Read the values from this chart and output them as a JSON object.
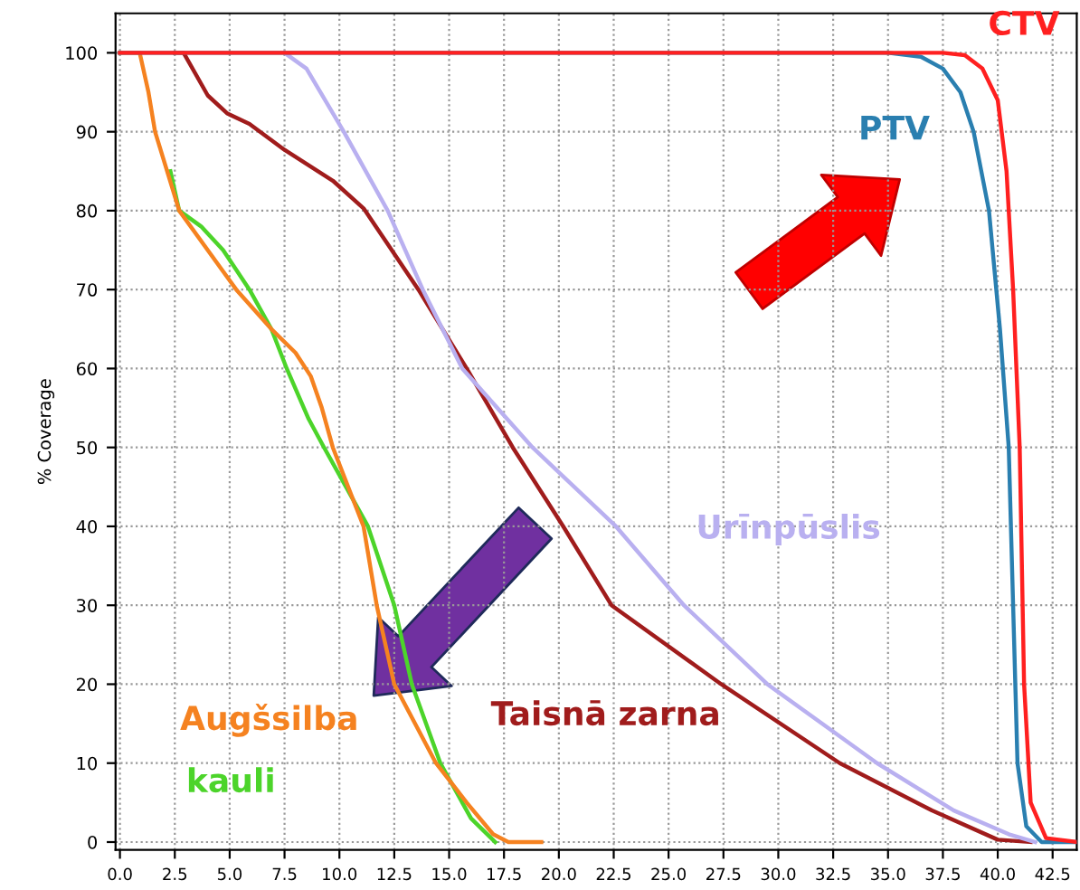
{
  "chart_data": {
    "type": "line",
    "ylabel": "% Coverage",
    "xlim": [
      -0.2,
      43.6
    ],
    "ylim": [
      -1,
      105
    ],
    "xticks": [
      {
        "value": 0,
        "label": "0.0"
      },
      {
        "value": 2.5,
        "label": "2.5"
      },
      {
        "value": 5,
        "label": "5.0"
      },
      {
        "value": 7.5,
        "label": "7.5"
      },
      {
        "value": 10,
        "label": "10.0"
      },
      {
        "value": 12.5,
        "label": "12.5"
      },
      {
        "value": 15,
        "label": "15.0"
      },
      {
        "value": 17.5,
        "label": "17.5"
      },
      {
        "value": 20,
        "label": "20.0"
      },
      {
        "value": 22.5,
        "label": "22.5"
      },
      {
        "value": 25,
        "label": "25.0"
      },
      {
        "value": 27.5,
        "label": "27.5"
      },
      {
        "value": 30,
        "label": "30.0"
      },
      {
        "value": 32.5,
        "label": "32.5"
      },
      {
        "value": 35,
        "label": "35.0"
      },
      {
        "value": 37.5,
        "label": "37.5"
      },
      {
        "value": 40,
        "label": "40.0"
      },
      {
        "value": 42.5,
        "label": "42.5"
      }
    ],
    "yticks": [
      0,
      10,
      20,
      30,
      40,
      50,
      60,
      70,
      80,
      90,
      100
    ],
    "grid": true,
    "line_style": "solid",
    "marker": "none",
    "series": [
      {
        "name": "CTV",
        "color": "#ff2020",
        "x": [
          0,
          37.5,
          38.5,
          39.3,
          40,
          40.4,
          40.7,
          41,
          41.2,
          41.5,
          42.2,
          43.6
        ],
        "values": [
          100,
          100,
          99.7,
          98,
          94,
          85,
          70,
          50,
          20,
          5,
          0.5,
          0
        ]
      },
      {
        "name": "PTV",
        "color": "#2a7fb0",
        "x": [
          0,
          35,
          36.5,
          37.5,
          38.3,
          38.9,
          39.6,
          40.1,
          40.5,
          40.7,
          40.9,
          41.3,
          42,
          43.6
        ],
        "values": [
          100,
          100,
          99.5,
          98,
          95,
          90,
          80,
          65,
          50,
          30,
          10,
          2,
          0,
          0
        ]
      },
      {
        "name": "Urīnpūslis",
        "color": "#b9b0f0",
        "x": [
          7.5,
          8.5,
          10.2,
          12.2,
          13.8,
          15.6,
          18.8,
          22.6,
          25.7,
          29.5,
          34.5,
          38,
          40.5,
          41.7
        ],
        "values": [
          100,
          98,
          90,
          80,
          70,
          60,
          50,
          40,
          30,
          20,
          10,
          4,
          1,
          0
        ]
      },
      {
        "name": "Taisnā zarna",
        "color": "#a01c1c",
        "x": [
          2.5,
          2.9,
          4.0,
          4.9,
          5.9,
          7.5,
          9.7,
          11.1,
          13.6,
          15.8,
          17.9,
          20.2,
          22.4,
          27.4,
          32.8,
          37,
          40,
          41.5
        ],
        "values": [
          100,
          100,
          94.6,
          92.3,
          91,
          87.7,
          83.8,
          80.3,
          70,
          60,
          50,
          40,
          30,
          20,
          10,
          4,
          0.3,
          0
        ]
      },
      {
        "name": "Augšsilba",
        "color": "#f58220",
        "x": [
          0,
          0.9,
          1.3,
          1.6,
          2.7,
          5.3,
          6.9,
          8.0,
          8.7,
          9.2,
          9.7,
          11.1,
          11.7,
          12.5,
          14.4,
          15.8,
          17.0,
          17.7,
          19.2
        ],
        "values": [
          100,
          100,
          95,
          90,
          80,
          70,
          65,
          62,
          59,
          55,
          50,
          40,
          30,
          20,
          10,
          5,
          1,
          0,
          0
        ]
      },
      {
        "name": "kauli",
        "color": "#4cd42a",
        "x": [
          2.3,
          2.7,
          3.7,
          4.7,
          5.9,
          6.9,
          7.6,
          8.6,
          9.3,
          11.3,
          12.5,
          13.3,
          14.6,
          16.0,
          17.1
        ],
        "values": [
          85,
          80,
          78,
          75,
          70,
          65,
          60,
          53.6,
          50,
          40,
          30,
          20,
          10,
          3,
          0
        ]
      }
    ]
  }
}
